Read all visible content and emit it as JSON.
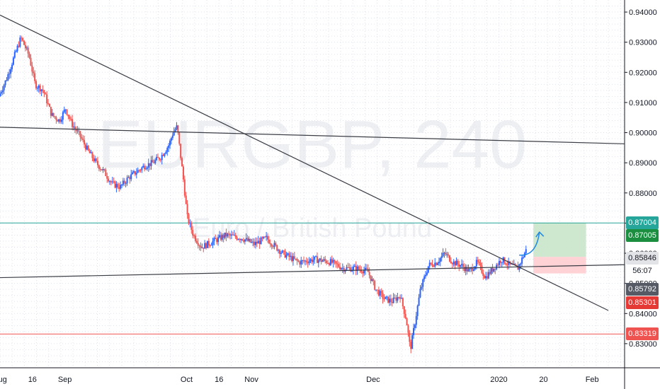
{
  "chart_data": {
    "type": "candlestick",
    "symbol_watermark": "EURGBP, 240",
    "description_watermark": "Euro / British Pound",
    "x_ticks": [
      {
        "label": "Aug",
        "x": 0
      },
      {
        "label": "16",
        "x": 8
      },
      {
        "label": "Sep",
        "x": 16
      },
      {
        "label": "Oct",
        "x": 46
      },
      {
        "label": "16",
        "x": 54
      },
      {
        "label": "Nov",
        "x": 62
      },
      {
        "label": "Dec",
        "x": 92
      },
      {
        "label": "2020",
        "x": 123
      },
      {
        "label": "20",
        "x": 134
      },
      {
        "label": "Feb",
        "x": 146
      }
    ],
    "y_ticks": [
      "0.83000",
      "0.84000",
      "0.85000",
      "0.86000",
      "0.87000",
      "0.88000",
      "0.89000",
      "0.90000",
      "0.91000",
      "0.92000",
      "0.93000",
      "0.94000"
    ],
    "ylim": [
      0.822,
      0.944
    ],
    "xlim": [
      0,
      154
    ],
    "price_path": [
      [
        0,
        0.912
      ],
      [
        2,
        0.918
      ],
      [
        3.5,
        0.924
      ],
      [
        5.5,
        0.9315
      ],
      [
        7.5,
        0.9255
      ],
      [
        9,
        0.916
      ],
      [
        11,
        0.914
      ],
      [
        13,
        0.906
      ],
      [
        15,
        0.904
      ],
      [
        16.5,
        0.908
      ],
      [
        18,
        0.903
      ],
      [
        20,
        0.899
      ],
      [
        22,
        0.894
      ],
      [
        24,
        0.89
      ],
      [
        26,
        0.887
      ],
      [
        28,
        0.883
      ],
      [
        30,
        0.882
      ],
      [
        32,
        0.885
      ],
      [
        34,
        0.887
      ],
      [
        36,
        0.889
      ],
      [
        38,
        0.89
      ],
      [
        40,
        0.892
      ],
      [
        42,
        0.896
      ],
      [
        43,
        0.9
      ],
      [
        44,
        0.902
      ],
      [
        45.5,
        0.885
      ],
      [
        46.5,
        0.872
      ],
      [
        48,
        0.866
      ],
      [
        50,
        0.862
      ],
      [
        53,
        0.864
      ],
      [
        56,
        0.866
      ],
      [
        60,
        0.865
      ],
      [
        63,
        0.863
      ],
      [
        66,
        0.865
      ],
      [
        70,
        0.86
      ],
      [
        74,
        0.857
      ],
      [
        78,
        0.858
      ],
      [
        82,
        0.857
      ],
      [
        85,
        0.855
      ],
      [
        88,
        0.855
      ],
      [
        91,
        0.854
      ],
      [
        93,
        0.848
      ],
      [
        95,
        0.845
      ],
      [
        97,
        0.844
      ],
      [
        99,
        0.846
      ],
      [
        100.5,
        0.838
      ],
      [
        101.5,
        0.828
      ],
      [
        102.5,
        0.836
      ],
      [
        104,
        0.848
      ],
      [
        106,
        0.856
      ],
      [
        108,
        0.857
      ],
      [
        110,
        0.86
      ],
      [
        112,
        0.857
      ],
      [
        114,
        0.856
      ],
      [
        116,
        0.854
      ],
      [
        118,
        0.857
      ],
      [
        120,
        0.852
      ],
      [
        122,
        0.855
      ],
      [
        124,
        0.858
      ],
      [
        126,
        0.856
      ],
      [
        128,
        0.855
      ],
      [
        130,
        0.861
      ]
    ],
    "trendlines": [
      {
        "from": [
          0,
          0.939
        ],
        "to": [
          150,
          0.841
        ]
      },
      {
        "from": [
          0,
          0.9018
        ],
        "to": [
          154,
          0.8963
        ]
      },
      {
        "from": [
          0,
          0.8519
        ],
        "to": [
          154,
          0.8562
        ]
      }
    ],
    "horizontal_lines": [
      {
        "value": 0.87004,
        "color": "#26a69a"
      },
      {
        "value": 0.83319,
        "color": "#ef5350"
      }
    ],
    "projection": {
      "target_zone": {
        "x0": 131.5,
        "x1": 144.5,
        "bottom": 0.8588,
        "top": 0.8701
      },
      "stop_zone": {
        "x0": 131.5,
        "x1": 144.5,
        "bottom": 0.8533,
        "top": 0.8588
      },
      "arrow_path": [
        [
          128,
          0.8594
        ],
        [
          131,
          0.859
        ],
        [
          132.5,
          0.862
        ],
        [
          133,
          0.867
        ]
      ]
    },
    "price_labels": [
      {
        "text": "0.87004",
        "value": 0.87004,
        "bg": "#26a69a",
        "fg": "#ffffff"
      },
      {
        "text": "0.87005",
        "value": 0.87005,
        "bg": "#1b8f3f",
        "fg": "#ffffff",
        "offset": 18
      },
      {
        "text": "0.85846",
        "value": 0.85846,
        "bg": "#e1e3e6",
        "fg": "#131722"
      },
      {
        "text": "56:07",
        "value": 0.85846,
        "bg": "#ffffff",
        "fg": "#131722",
        "offset": 18
      },
      {
        "text": "0.85792",
        "value": 0.85792,
        "bg": "#555a64",
        "fg": "#ffffff",
        "offset": 42
      },
      {
        "text": "0.85301",
        "value": 0.85301,
        "bg": "#e53935",
        "fg": "#ffffff",
        "offset": 40
      },
      {
        "text": "0.83319",
        "value": 0.83319,
        "bg": "#ef5350",
        "fg": "#ffffff"
      }
    ]
  },
  "colors": {
    "up": "#2962ff",
    "down": "#ef5350",
    "grid": "#e0e3eb",
    "trendline": "#3a3d45",
    "axis_text": "#131722",
    "target_fill": "#c8e6c9",
    "stop_fill": "#ffcdd2",
    "arrow": "#1e88e5"
  }
}
